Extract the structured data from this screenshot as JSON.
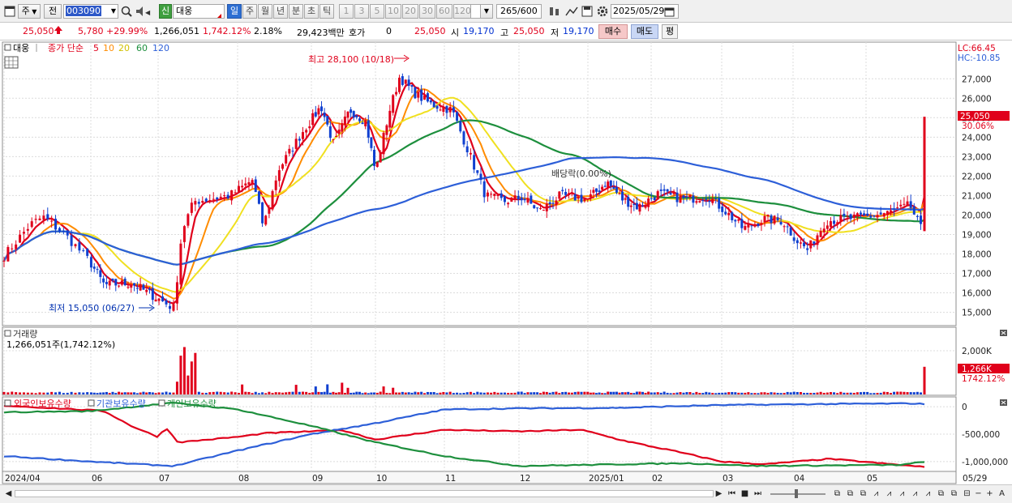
{
  "toolbar": {
    "type_select": "주",
    "prev_label": "전",
    "code_value": "003090",
    "new_badge": "신",
    "stock_name": "대웅",
    "periods": [
      "일",
      "주",
      "월",
      "년",
      "분",
      "초",
      "틱"
    ],
    "active_period": "일",
    "intervals": [
      "1",
      "3",
      "5",
      "10",
      "20",
      "30",
      "60",
      "120"
    ],
    "count_display": "265",
    "count_total": "/600",
    "date_value": "2025/05/29"
  },
  "quote": {
    "price": "25,050",
    "change": "5,780",
    "change_pct": "+29.99%",
    "volume": "1,266,051",
    "volume_ratio": "1,742.12%",
    "turnover": "2.18%",
    "amount": "29,423백만",
    "hoga_label": "호가",
    "hoga_value": "0",
    "hoga_price": "25,050",
    "open_label": "시",
    "open": "19,170",
    "high_label": "고",
    "high": "25,050",
    "low_label": "저",
    "low": "19,170",
    "buy_button": "매수",
    "sell_button": "매도",
    "eval_button": "평"
  },
  "main_panel": {
    "stock_tag": "대웅",
    "legend_prefix": "종가 단순",
    "ma_labels": [
      "5",
      "10",
      "20",
      "60",
      "120"
    ],
    "ma_colors": [
      "#e0001b",
      "#ff8c00",
      "#f0e020",
      "#1d8f3d",
      "#2d5fd8"
    ],
    "lc_label": "LC:66.45",
    "hc_label": "HC:-10.85",
    "current_price_tag": "25,050",
    "current_pct_tag": "30.06%",
    "annotation_high": "최고 28,100 (10/18)",
    "annotation_low": "최저 15,050 (06/27)",
    "annotation_dividend": "배당락(0.00%)"
  },
  "volume_panel": {
    "title": "거래량",
    "subtitle": "1,266,051주(1,742.12%)",
    "tag_value": "1,266K",
    "tag_pct": "1742.12%"
  },
  "holders_panel": {
    "legend": [
      "외국인보유수량",
      "기관보유수량",
      "개인보유수량"
    ],
    "colors": [
      "#e0001b",
      "#2d5fd8",
      "#1d8f3d"
    ]
  },
  "x_axis": {
    "labels": [
      "2024/04",
      "06",
      "07",
      "08",
      "09",
      "10",
      "11",
      "12",
      "2025/01",
      "02",
      "03",
      "04",
      "05",
      "05/29"
    ]
  },
  "chart_data": {
    "type": "candlestick",
    "title": "대웅",
    "price_axis": {
      "ticks": [
        "15,000",
        "16,000",
        "17,000",
        "18,000",
        "19,000",
        "20,000",
        "21,000",
        "22,000",
        "23,000",
        "24,000",
        "25,000",
        "26,000",
        "27,000"
      ],
      "ylim": [
        14400,
        28800
      ]
    },
    "volume_axis": {
      "ticks": [
        "2,000K"
      ],
      "ylim": [
        0,
        3000000
      ]
    },
    "holders_axis": {
      "ticks": [
        "0",
        "-500,000",
        "-1,000,000"
      ],
      "ylim": [
        -1150000,
        150000
      ]
    },
    "close_keypoints": [
      {
        "m": 0,
        "v": 17900
      },
      {
        "m": 0.3,
        "v": 19500
      },
      {
        "m": 0.45,
        "v": 19900
      },
      {
        "m": 0.7,
        "v": 19000
      },
      {
        "m": 0.95,
        "v": 17800
      },
      {
        "m": 1.2,
        "v": 16400
      },
      {
        "m": 1.6,
        "v": 16500
      },
      {
        "m": 2.0,
        "v": 15700
      },
      {
        "m": 2.2,
        "v": 15200
      },
      {
        "m": 2.3,
        "v": 19200
      },
      {
        "m": 2.45,
        "v": 20700
      },
      {
        "m": 2.9,
        "v": 21000
      },
      {
        "m": 3.2,
        "v": 21800
      },
      {
        "m": 3.35,
        "v": 19400
      },
      {
        "m": 3.55,
        "v": 22300
      },
      {
        "m": 3.9,
        "v": 24400
      },
      {
        "m": 4.15,
        "v": 25600
      },
      {
        "m": 4.35,
        "v": 23600
      },
      {
        "m": 4.6,
        "v": 25400
      },
      {
        "m": 4.85,
        "v": 24800
      },
      {
        "m": 5.0,
        "v": 22200
      },
      {
        "m": 5.2,
        "v": 25300
      },
      {
        "m": 5.35,
        "v": 27100
      },
      {
        "m": 5.55,
        "v": 26300
      },
      {
        "m": 5.8,
        "v": 25700
      },
      {
        "m": 6.1,
        "v": 25400
      },
      {
        "m": 6.35,
        "v": 23000
      },
      {
        "m": 6.55,
        "v": 21000
      },
      {
        "m": 6.8,
        "v": 20700
      },
      {
        "m": 7.05,
        "v": 20900
      },
      {
        "m": 7.3,
        "v": 20200
      },
      {
        "m": 7.6,
        "v": 21000
      },
      {
        "m": 8.0,
        "v": 20800
      },
      {
        "m": 8.3,
        "v": 21700
      },
      {
        "m": 8.55,
        "v": 20800
      },
      {
        "m": 8.8,
        "v": 20400
      },
      {
        "m": 9.1,
        "v": 21100
      },
      {
        "m": 9.5,
        "v": 20800
      },
      {
        "m": 9.8,
        "v": 21000
      },
      {
        "m": 10.05,
        "v": 20200
      },
      {
        "m": 10.3,
        "v": 19300
      },
      {
        "m": 10.6,
        "v": 19800
      },
      {
        "m": 10.85,
        "v": 19700
      },
      {
        "m": 11.05,
        "v": 18700
      },
      {
        "m": 11.2,
        "v": 18200
      },
      {
        "m": 11.45,
        "v": 19700
      },
      {
        "m": 11.7,
        "v": 19800
      },
      {
        "m": 12.0,
        "v": 19900
      },
      {
        "m": 12.3,
        "v": 20100
      },
      {
        "m": 12.6,
        "v": 20500
      },
      {
        "m": 12.75,
        "v": 19300
      },
      {
        "m": 12.8,
        "v": 25050
      }
    ],
    "series": [
      {
        "name": "5",
        "color": "#e0001b"
      },
      {
        "name": "10",
        "color": "#ff8c00"
      },
      {
        "name": "20",
        "color": "#f0e020"
      },
      {
        "name": "60",
        "color": "#1d8f3d"
      },
      {
        "name": "120",
        "color": "#2d5fd8"
      }
    ],
    "holders_series": [
      {
        "name": "외국인보유수량",
        "color": "#e0001b",
        "keypoints": [
          {
            "m": 0,
            "v": 20000
          },
          {
            "m": 0.5,
            "v": -20000
          },
          {
            "m": 1.2,
            "v": -80000
          },
          {
            "m": 1.6,
            "v": -350000
          },
          {
            "m": 2.0,
            "v": -550000
          },
          {
            "m": 2.1,
            "v": -380000
          },
          {
            "m": 2.25,
            "v": -650000
          },
          {
            "m": 3.0,
            "v": -550000
          },
          {
            "m": 3.4,
            "v": -480000
          },
          {
            "m": 4.0,
            "v": -450000
          },
          {
            "m": 4.5,
            "v": -430000
          },
          {
            "m": 5.0,
            "v": -600000
          },
          {
            "m": 6.0,
            "v": -420000
          },
          {
            "m": 7.0,
            "v": -450000
          },
          {
            "m": 7.9,
            "v": -420000
          },
          {
            "m": 8.5,
            "v": -600000
          },
          {
            "m": 9.3,
            "v": -800000
          },
          {
            "m": 10.0,
            "v": -1000000
          },
          {
            "m": 10.6,
            "v": -1050000
          },
          {
            "m": 11.5,
            "v": -950000
          },
          {
            "m": 12.8,
            "v": -1100000
          }
        ]
      },
      {
        "name": "기관보유수량",
        "color": "#2d5fd8",
        "keypoints": [
          {
            "m": 0,
            "v": -900000
          },
          {
            "m": 1.0,
            "v": -1000000
          },
          {
            "m": 2.2,
            "v": -1080000
          },
          {
            "m": 3.0,
            "v": -800000
          },
          {
            "m": 4.0,
            "v": -500000
          },
          {
            "m": 5.0,
            "v": -300000
          },
          {
            "m": 6.0,
            "v": -50000
          },
          {
            "m": 7.0,
            "v": -30000
          },
          {
            "m": 8.5,
            "v": -20000
          },
          {
            "m": 10.0,
            "v": 30000
          },
          {
            "m": 11.5,
            "v": 50000
          },
          {
            "m": 12.6,
            "v": 60000
          },
          {
            "m": 12.8,
            "v": 50000
          }
        ]
      },
      {
        "name": "개인보유수량",
        "color": "#1d8f3d",
        "keypoints": [
          {
            "m": 0,
            "v": -100000
          },
          {
            "m": 1.0,
            "v": -80000
          },
          {
            "m": 2.2,
            "v": 70000
          },
          {
            "m": 3.0,
            "v": -50000
          },
          {
            "m": 4.0,
            "v": -350000
          },
          {
            "m": 5.0,
            "v": -650000
          },
          {
            "m": 6.0,
            "v": -900000
          },
          {
            "m": 7.0,
            "v": -1080000
          },
          {
            "m": 8.5,
            "v": -1050000
          },
          {
            "m": 9.5,
            "v": -1030000
          },
          {
            "m": 10.5,
            "v": -1080000
          },
          {
            "m": 12.5,
            "v": -1060000
          },
          {
            "m": 12.8,
            "v": -1000000
          }
        ]
      }
    ]
  }
}
